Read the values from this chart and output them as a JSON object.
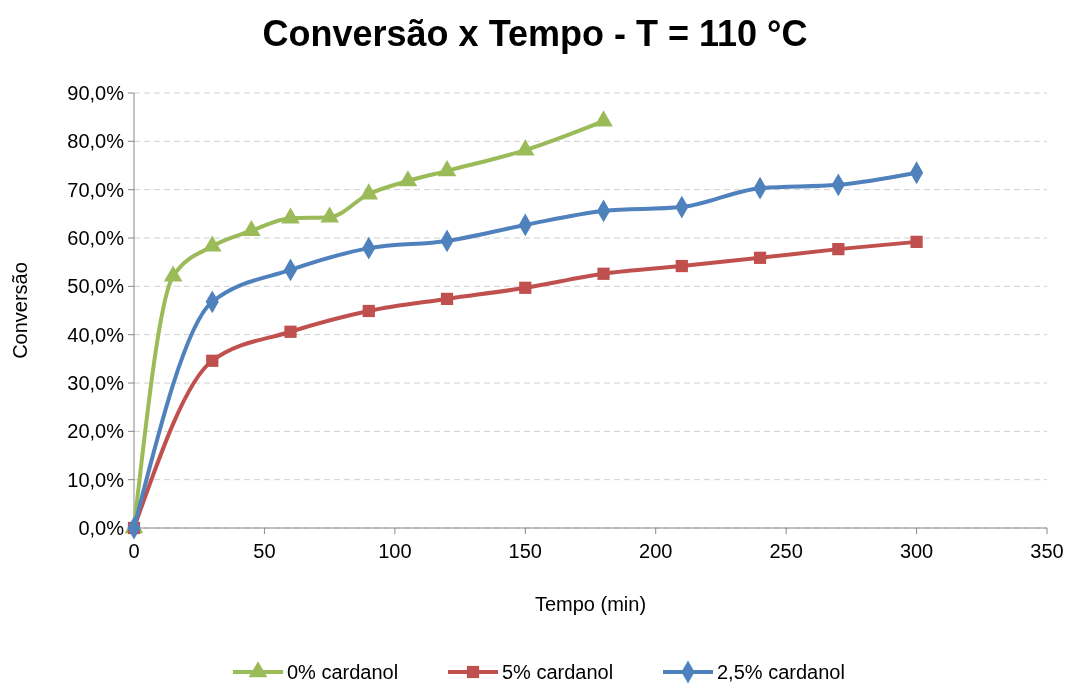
{
  "chart_data": {
    "type": "line",
    "title": "Conversão x Tempo - T = 110 °C",
    "xlabel": "Tempo (min)",
    "ylabel": "Conversão",
    "xlim": [
      0,
      350
    ],
    "xticks": [
      0,
      50,
      100,
      150,
      200,
      250,
      300,
      350
    ],
    "ylim": [
      0,
      90
    ],
    "yticks": [
      {
        "value": 0,
        "label": "0,0%"
      },
      {
        "value": 10,
        "label": "10,0%"
      },
      {
        "value": 20,
        "label": "20,0%"
      },
      {
        "value": 30,
        "label": "30,0%"
      },
      {
        "value": 40,
        "label": "40,0%"
      },
      {
        "value": 50,
        "label": "50,0%"
      },
      {
        "value": 60,
        "label": "60,0%"
      },
      {
        "value": 70,
        "label": "70,0%"
      },
      {
        "value": 80,
        "label": "80,0%"
      },
      {
        "value": 90,
        "label": "90,0%"
      }
    ],
    "grid": "y",
    "legend": "bottom",
    "series": [
      {
        "name": "0% cardanol",
        "color": "#9bbb59",
        "marker": "triangle",
        "x": [
          0,
          15,
          30,
          45,
          60,
          75,
          90,
          105,
          120,
          150,
          180
        ],
        "values": [
          0,
          52.1,
          58.3,
          61.5,
          64.1,
          64.3,
          69.1,
          71.8,
          73.9,
          78.2,
          84.2
        ]
      },
      {
        "name": "5% cardanol",
        "color": "#c0504d",
        "marker": "square",
        "x": [
          0,
          30,
          60,
          90,
          120,
          150,
          180,
          210,
          240,
          270,
          300
        ],
        "values": [
          0,
          34.6,
          40.6,
          44.9,
          47.4,
          49.7,
          52.6,
          54.2,
          55.9,
          57.7,
          59.2
        ]
      },
      {
        "name": "2,5% cardanol",
        "color": "#4f81bd",
        "marker": "diamond",
        "x": [
          0,
          30,
          60,
          90,
          120,
          150,
          180,
          210,
          240,
          270,
          300
        ],
        "values": [
          0,
          46.8,
          53.4,
          57.9,
          59.4,
          62.7,
          65.6,
          66.4,
          70.3,
          71.0,
          73.5
        ]
      }
    ]
  }
}
